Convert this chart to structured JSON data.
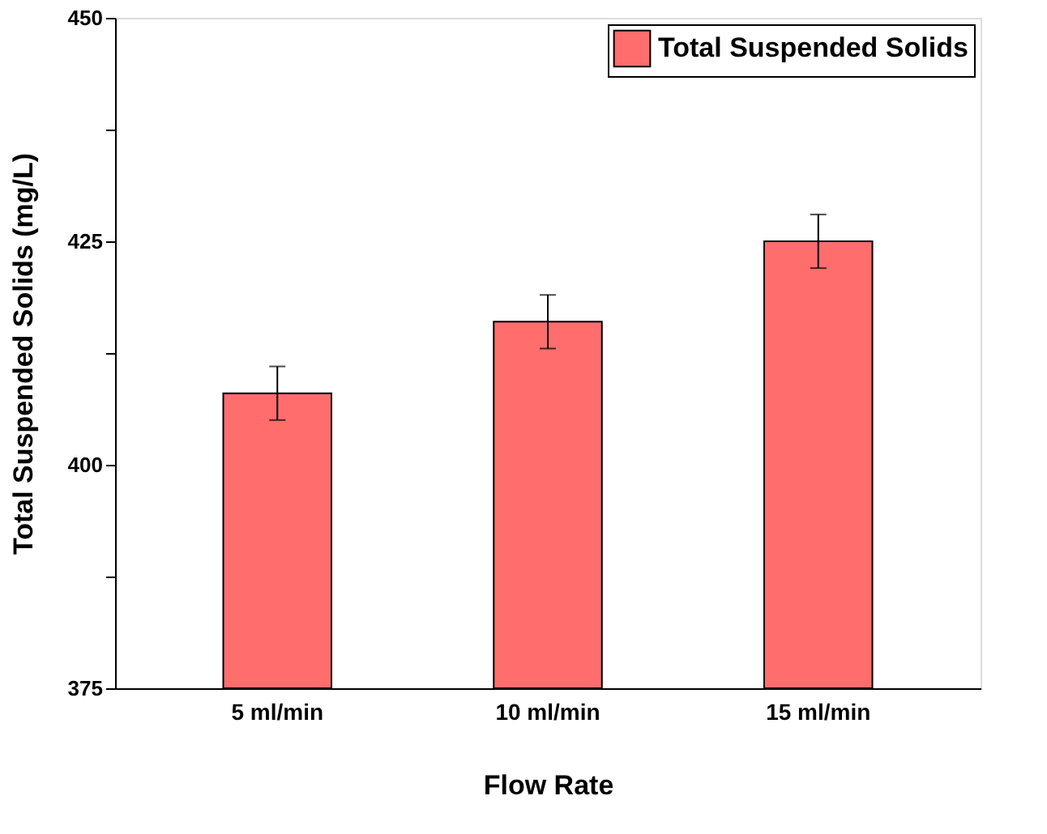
{
  "chart_data": {
    "type": "bar",
    "xlabel": "Flow Rate",
    "ylabel": "Total Suspended Solids (mg/L)",
    "categories": [
      "5 ml/min",
      "10  ml/min",
      "15  ml/min"
    ],
    "series": [
      {
        "name": "Total Suspended Solids",
        "color": "#ff6d6d",
        "values": [
          408,
          416,
          425
        ],
        "errors": [
          3,
          3,
          3
        ]
      }
    ],
    "ylim": [
      375,
      450
    ],
    "yticks": [
      375,
      {
        "value": 387.5,
        "label": null
      },
      400,
      {
        "value": 412.5,
        "label": null
      },
      425,
      {
        "value": 437.5,
        "label": null
      },
      450
    ],
    "grid": false,
    "legend": "top right"
  }
}
